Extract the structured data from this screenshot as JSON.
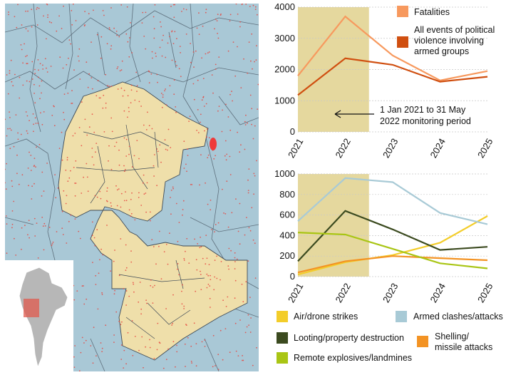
{
  "colors": {
    "water_blue": "#a9c8d6",
    "region_fill": "#efdfaa",
    "dots": "#e8473f",
    "highlight": "#e5d89e"
  },
  "map": {
    "inset_note": ""
  },
  "chart_data": [
    {
      "type": "line",
      "x": [
        "2021",
        "2022",
        "2023",
        "2024",
        "2025"
      ],
      "ylim": [
        0,
        4000
      ],
      "yticks": [
        0,
        1000,
        2000,
        3000,
        4000
      ],
      "grid": true,
      "highlight_span": [
        "2021",
        "2022.5"
      ],
      "annotation": "1 Jan 2021 to 31 May 2022 monitoring period",
      "series": [
        {
          "name": "Fatalities",
          "color": "#f7995e",
          "values": [
            1800,
            3700,
            2450,
            1650,
            1950
          ]
        },
        {
          "name": "All events of political violence involving armed groups",
          "color": "#d04f10",
          "values": [
            1180,
            2360,
            2150,
            1610,
            1770
          ]
        }
      ],
      "legend_position": "top-right"
    },
    {
      "type": "line",
      "x": [
        "2021",
        "2022",
        "2023",
        "2024",
        "2025"
      ],
      "ylim": [
        0,
        1000
      ],
      "yticks": [
        0,
        200,
        400,
        600,
        800,
        1000
      ],
      "grid": true,
      "highlight_span": [
        "2021",
        "2022.5"
      ],
      "series": [
        {
          "name": "Air/drone strikes",
          "color": "#f3cd2a",
          "values": [
            20,
            140,
            210,
            330,
            590
          ]
        },
        {
          "name": "Armed clashes/attacks",
          "color": "#a8cad6",
          "values": [
            540,
            960,
            920,
            620,
            510
          ]
        },
        {
          "name": "Looting/property destruction",
          "color": "#3b4a1f",
          "values": [
            150,
            640,
            460,
            260,
            290
          ]
        },
        {
          "name": "Shelling/missile attacks",
          "color": "#f39324",
          "values": [
            40,
            150,
            200,
            180,
            160
          ]
        },
        {
          "name": "Remote explosives/landmines",
          "color": "#a9c514",
          "values": [
            430,
            410,
            270,
            130,
            80
          ]
        }
      ],
      "legend_position": "bottom"
    }
  ]
}
